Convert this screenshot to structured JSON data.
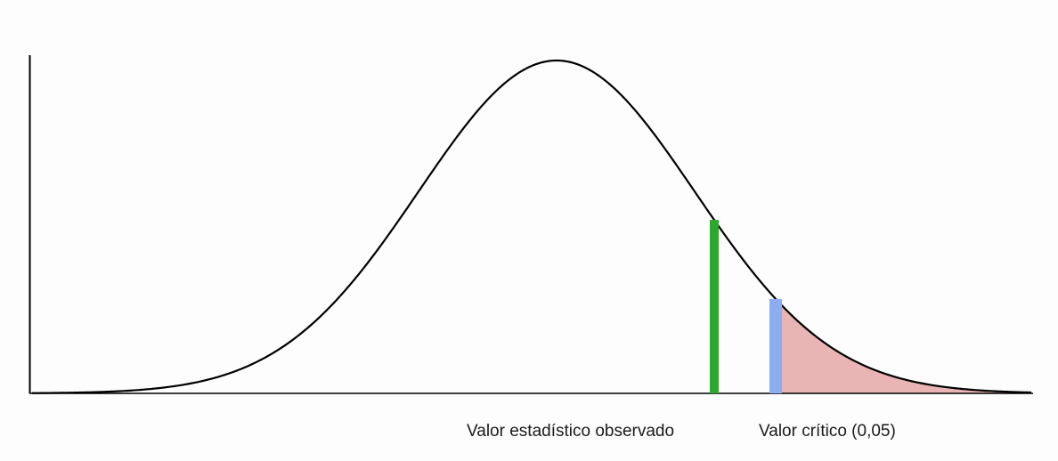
{
  "labels": {
    "observed": "Valor estadístico observado",
    "critical": "Valor crítico (0,05)"
  },
  "colors": {
    "background": "#fdfdfd",
    "curve": "#000000",
    "axis": "#000000",
    "observed_marker": "#2ca82c",
    "critical_marker": "#8aaef0",
    "rejection_region": "#e8b4b4"
  }
}
